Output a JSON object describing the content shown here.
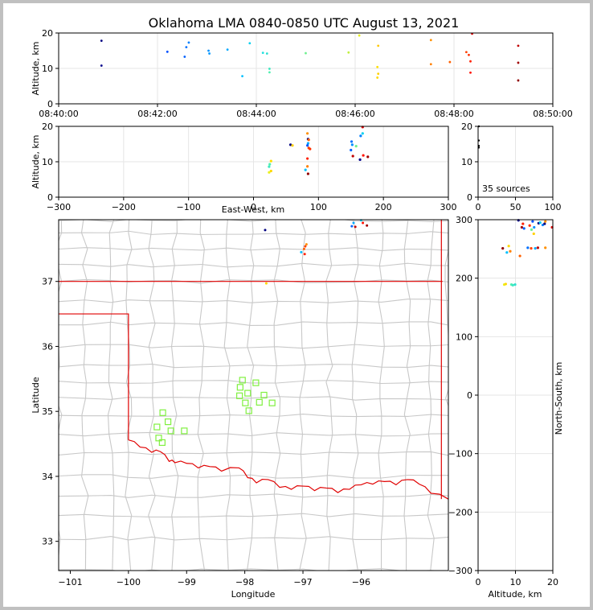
{
  "title": "Oklahoma LMA 0840-0850 UTC August 13, 2021",
  "colors": {
    "frame_bg": "#c0c0c0",
    "county": "#c8c8c8",
    "state_border": "#e00000",
    "station": "#80f040",
    "grid": "#e6e6e6"
  },
  "source_count_label": "35 sources",
  "chart_data": [
    {
      "id": "time_height",
      "type": "scatter",
      "ylabel": "Altitude, km",
      "xlim": [
        "08:40:00",
        "08:50:00"
      ],
      "ylim": [
        0,
        20
      ],
      "xticks": [
        "08:40:00",
        "08:42:00",
        "08:44:00",
        "08:46:00",
        "08:48:00",
        "08:50:00"
      ],
      "yticks": [
        "0",
        "10",
        "20"
      ],
      "grid": true,
      "points": [
        {
          "t": "08:40:52",
          "z": 17.8,
          "c": "#000080"
        },
        {
          "t": "08:40:52",
          "z": 10.8,
          "c": "#00008b"
        },
        {
          "t": "08:42:12",
          "z": 14.7,
          "c": "#0050ff"
        },
        {
          "t": "08:42:33",
          "z": 13.3,
          "c": "#0060ff"
        },
        {
          "t": "08:42:35",
          "z": 16.0,
          "c": "#0070ff"
        },
        {
          "t": "08:42:38",
          "z": 17.3,
          "c": "#0080ff"
        },
        {
          "t": "08:43:02",
          "z": 15.0,
          "c": "#0090ff"
        },
        {
          "t": "08:43:03",
          "z": 14.2,
          "c": "#0098ff"
        },
        {
          "t": "08:43:25",
          "z": 15.3,
          "c": "#00a8ff"
        },
        {
          "t": "08:43:43",
          "z": 7.8,
          "c": "#00c0ff"
        },
        {
          "t": "08:43:52",
          "z": 17.1,
          "c": "#00d0f0"
        },
        {
          "t": "08:44:08",
          "z": 14.4,
          "c": "#20e0e0"
        },
        {
          "t": "08:44:13",
          "z": 14.2,
          "c": "#30e0d0"
        },
        {
          "t": "08:44:16",
          "z": 9.9,
          "c": "#40e8c0"
        },
        {
          "t": "08:44:16",
          "z": 8.9,
          "c": "#50f0b0"
        },
        {
          "t": "08:45:00",
          "z": 14.3,
          "c": "#70f090"
        },
        {
          "t": "08:45:52",
          "z": 14.5,
          "c": "#c0f040"
        },
        {
          "t": "08:46:05",
          "z": 19.3,
          "c": "#e8f020"
        },
        {
          "t": "08:46:27",
          "z": 10.4,
          "c": "#ffe000"
        },
        {
          "t": "08:46:27",
          "z": 7.4,
          "c": "#ffd800"
        },
        {
          "t": "08:46:28",
          "z": 8.5,
          "c": "#ffd000"
        },
        {
          "t": "08:46:28",
          "z": 16.4,
          "c": "#ffc800"
        },
        {
          "t": "08:47:32",
          "z": 18.0,
          "c": "#ff9000"
        },
        {
          "t": "08:47:32",
          "z": 11.2,
          "c": "#ff8000"
        },
        {
          "t": "08:47:55",
          "z": 11.8,
          "c": "#ff6000"
        },
        {
          "t": "08:48:15",
          "z": 14.6,
          "c": "#ff4000"
        },
        {
          "t": "08:48:18",
          "z": 13.8,
          "c": "#ff3000"
        },
        {
          "t": "08:48:20",
          "z": 12.0,
          "c": "#ff2000"
        },
        {
          "t": "08:48:20",
          "z": 8.8,
          "c": "#ff1000"
        },
        {
          "t": "08:48:22",
          "z": 19.8,
          "c": "#e00000"
        },
        {
          "t": "08:49:18",
          "z": 16.4,
          "c": "#c00000"
        },
        {
          "t": "08:49:18",
          "z": 11.6,
          "c": "#a00000"
        },
        {
          "t": "08:49:18",
          "z": 6.6,
          "c": "#900000"
        }
      ]
    },
    {
      "id": "ew_height",
      "type": "scatter",
      "xlabel": "East-West, km",
      "ylabel": "Altitude, km",
      "xlim": [
        -300,
        300
      ],
      "ylim": [
        0,
        20
      ],
      "xticks": [
        "−300",
        "−200",
        "−100",
        "0",
        "100",
        "200",
        "300"
      ],
      "yticks": [
        "0",
        "10",
        "20"
      ],
      "grid": true,
      "points": [
        {
          "x": 57,
          "z": 14.8,
          "c": "#000080"
        },
        {
          "x": 60,
          "z": 14.6,
          "c": "#ffd000"
        },
        {
          "x": 25,
          "z": 9.3,
          "c": "#50f0b0"
        },
        {
          "x": 27,
          "z": 10.2,
          "c": "#ffe000"
        },
        {
          "x": 24,
          "z": 8.6,
          "c": "#40e8c0"
        },
        {
          "x": 27,
          "z": 7.4,
          "c": "#ffd800"
        },
        {
          "x": 24,
          "z": 7.0,
          "c": "#e8f020"
        },
        {
          "x": 80,
          "z": 7.7,
          "c": "#00c0ff"
        },
        {
          "x": 83,
          "z": 18.0,
          "c": "#ff9000"
        },
        {
          "x": 84,
          "z": 16.4,
          "c": "#000080"
        },
        {
          "x": 85,
          "z": 16.2,
          "c": "#ff6000"
        },
        {
          "x": 84,
          "z": 15.2,
          "c": "#00a8ff"
        },
        {
          "x": 83,
          "z": 14.6,
          "c": "#0050ff"
        },
        {
          "x": 85,
          "z": 13.9,
          "c": "#ff4000"
        },
        {
          "x": 87,
          "z": 13.6,
          "c": "#ff3000"
        },
        {
          "x": 83,
          "z": 10.9,
          "c": "#ff2000"
        },
        {
          "x": 83,
          "z": 8.7,
          "c": "#ff8000"
        },
        {
          "x": 84,
          "z": 6.6,
          "c": "#900000"
        },
        {
          "x": 151,
          "z": 15.7,
          "c": "#0070ff"
        },
        {
          "x": 152,
          "z": 14.8,
          "c": "#0090ff"
        },
        {
          "x": 150,
          "z": 13.3,
          "c": "#0060ff"
        },
        {
          "x": 153,
          "z": 11.6,
          "c": "#c00000"
        },
        {
          "x": 158,
          "z": 14.4,
          "c": "#70f090"
        },
        {
          "x": 165,
          "z": 17.3,
          "c": "#0080ff"
        },
        {
          "x": 168,
          "z": 19.8,
          "c": "#e00000"
        },
        {
          "x": 168,
          "z": 18.0,
          "c": "#00d0f0"
        },
        {
          "x": 169,
          "z": 11.8,
          "c": "#ff1000"
        },
        {
          "x": 164,
          "z": 10.6,
          "c": "#00008b"
        },
        {
          "x": 176,
          "z": 11.4,
          "c": "#a00000"
        }
      ]
    },
    {
      "id": "histogram",
      "type": "scatter",
      "xlim": [
        0,
        100
      ],
      "ylim": [
        0,
        20
      ],
      "xticks": [
        "0",
        "50",
        "100"
      ],
      "yticks": [
        "0",
        "10",
        "20"
      ],
      "grid": true,
      "points": [
        {
          "x": 1,
          "z": 16.0,
          "c": "#000000"
        },
        {
          "x": 1,
          "z": 14.5,
          "c": "#000000"
        },
        {
          "x": 1,
          "z": 14.0,
          "c": "#000000"
        },
        {
          "x": 1,
          "z": 20.0,
          "c": "#000000"
        }
      ]
    },
    {
      "id": "plan_view",
      "type": "scatter",
      "xlabel": "Longitude",
      "ylabel": "Latitude",
      "xlim": [
        -101.2,
        -94.5
      ],
      "ylim": [
        32.55,
        37.95
      ],
      "xticks": [
        "−101",
        "−100",
        "−99",
        "−98",
        "−97",
        "−96"
      ],
      "yticks": [
        "33",
        "34",
        "35",
        "36",
        "37"
      ],
      "grid": false,
      "stations": [
        {
          "lon": -98.04,
          "lat": 35.48
        },
        {
          "lon": -97.81,
          "lat": 35.44
        },
        {
          "lon": -98.08,
          "lat": 35.37
        },
        {
          "lon": -97.95,
          "lat": 35.28
        },
        {
          "lon": -98.09,
          "lat": 35.24
        },
        {
          "lon": -97.67,
          "lat": 35.25
        },
        {
          "lon": -97.99,
          "lat": 35.13
        },
        {
          "lon": -97.75,
          "lat": 35.14
        },
        {
          "lon": -97.53,
          "lat": 35.13
        },
        {
          "lon": -97.93,
          "lat": 35.01
        },
        {
          "lon": -99.41,
          "lat": 34.98
        },
        {
          "lon": -99.32,
          "lat": 34.84
        },
        {
          "lon": -99.51,
          "lat": 34.76
        },
        {
          "lon": -99.27,
          "lat": 34.7
        },
        {
          "lon": -99.04,
          "lat": 34.7
        },
        {
          "lon": -99.48,
          "lat": 34.59
        },
        {
          "lon": -99.42,
          "lat": 34.52
        }
      ],
      "points": [
        {
          "lon": -97.65,
          "lat": 37.79,
          "c": "#000080"
        },
        {
          "lon": -97.03,
          "lat": 37.45,
          "c": "#00c0ff"
        },
        {
          "lon": -96.94,
          "lat": 37.57,
          "c": "#ff9000"
        },
        {
          "lon": -96.96,
          "lat": 37.54,
          "c": "#ff4000"
        },
        {
          "lon": -96.98,
          "lat": 37.5,
          "c": "#ff6000"
        },
        {
          "lon": -96.97,
          "lat": 37.42,
          "c": "#ff2000"
        },
        {
          "lon": -97.63,
          "lat": 36.97,
          "c": "#ffd800"
        },
        {
          "lon": -96.16,
          "lat": 37.85,
          "c": "#0060ff"
        },
        {
          "lon": -96.13,
          "lat": 37.9,
          "c": "#00a8ff"
        },
        {
          "lon": -96.1,
          "lat": 37.84,
          "c": "#c00000"
        },
        {
          "lon": -96.0,
          "lat": 37.94,
          "c": "#00d0f0"
        },
        {
          "lon": -95.97,
          "lat": 37.9,
          "c": "#ff1000"
        },
        {
          "lon": -95.9,
          "lat": 37.86,
          "c": "#a00000"
        }
      ]
    },
    {
      "id": "height_ns",
      "type": "scatter",
      "xlabel": "Altitude, km",
      "ylabel": "North-South, km",
      "xlim": [
        0,
        20
      ],
      "ylim": [
        -300,
        300
      ],
      "xticks": [
        "0",
        "10",
        "20"
      ],
      "yticks": [
        "−300",
        "−200",
        "−100",
        "0",
        "100",
        "200",
        "300"
      ],
      "grid": true,
      "points": [
        {
          "z": 10.8,
          "y": 299,
          "c": "#00008b"
        },
        {
          "z": 12.0,
          "y": 293,
          "c": "#ff2000"
        },
        {
          "z": 11.7,
          "y": 287,
          "c": "#a00000"
        },
        {
          "z": 12.3,
          "y": 285,
          "c": "#0060ff"
        },
        {
          "z": 13.8,
          "y": 290,
          "c": "#ff3000"
        },
        {
          "z": 14.6,
          "y": 297,
          "c": "#0050ff"
        },
        {
          "z": 14.3,
          "y": 283,
          "c": "#70f090"
        },
        {
          "z": 15.0,
          "y": 287,
          "c": "#0090ff"
        },
        {
          "z": 14.9,
          "y": 276,
          "c": "#ffd000"
        },
        {
          "z": 16.2,
          "y": 294,
          "c": "#000080"
        },
        {
          "z": 17.3,
          "y": 291,
          "c": "#0080ff"
        },
        {
          "z": 17.8,
          "y": 293,
          "c": "#000080"
        },
        {
          "z": 18.0,
          "y": 297,
          "c": "#ff9000"
        },
        {
          "z": 19.8,
          "y": 287,
          "c": "#e00000"
        },
        {
          "z": 16.6,
          "y": 295,
          "c": "#00d0f0"
        },
        {
          "z": 6.6,
          "y": 251,
          "c": "#900000"
        },
        {
          "z": 7.7,
          "y": 244,
          "c": "#00c0ff"
        },
        {
          "z": 8.6,
          "y": 246,
          "c": "#ff8000"
        },
        {
          "z": 8.2,
          "y": 255,
          "c": "#ffd800"
        },
        {
          "z": 11.2,
          "y": 238,
          "c": "#ff6000"
        },
        {
          "z": 13.3,
          "y": 252,
          "c": "#0070ff"
        },
        {
          "z": 14.2,
          "y": 251,
          "c": "#ff4000"
        },
        {
          "z": 15.3,
          "y": 251,
          "c": "#00a8ff"
        },
        {
          "z": 16.0,
          "y": 252,
          "c": "#c00000"
        },
        {
          "z": 18.0,
          "y": 252,
          "c": "#ff9000"
        },
        {
          "z": 7.0,
          "y": 189,
          "c": "#e8f020"
        },
        {
          "z": 7.4,
          "y": 190,
          "c": "#ffd800"
        },
        {
          "z": 8.9,
          "y": 189,
          "c": "#50f0b0"
        },
        {
          "z": 9.3,
          "y": 188,
          "c": "#40e8c0"
        },
        {
          "z": 9.9,
          "y": 189,
          "c": "#30e0d0"
        }
      ]
    }
  ]
}
